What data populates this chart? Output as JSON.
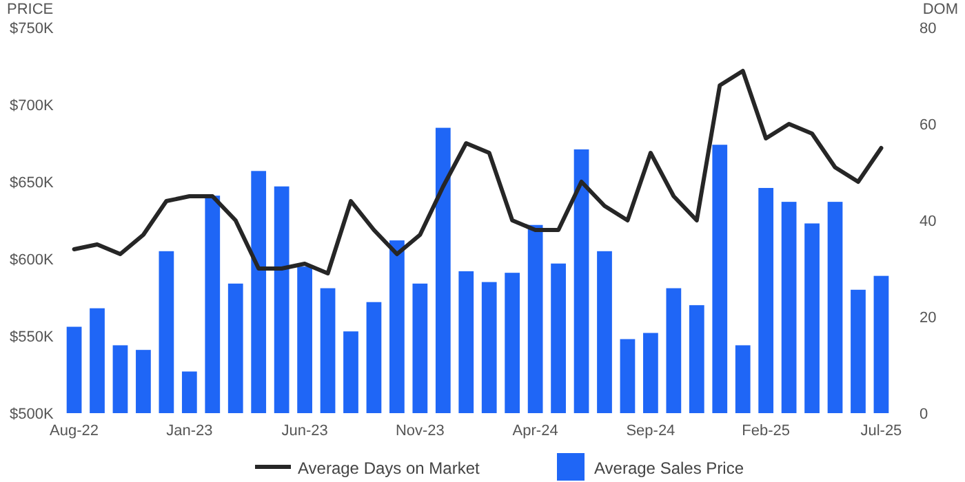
{
  "chart_data": {
    "type": "bar",
    "ylabel": "PRICE",
    "y2label": "DOM",
    "categories": [
      "Aug-22",
      null,
      null,
      null,
      null,
      "Jan-23",
      null,
      null,
      null,
      null,
      "Jun-23",
      null,
      null,
      null,
      null,
      "Nov-23",
      null,
      null,
      null,
      null,
      "Apr-24",
      null,
      null,
      null,
      null,
      "Sep-24",
      null,
      null,
      null,
      null,
      "Feb-25",
      null,
      null,
      null,
      null,
      "Jul-25"
    ],
    "series": [
      {
        "name": "Average Sales Price",
        "color": "#1f66f6",
        "values": [
          556,
          568,
          544,
          541,
          605,
          527,
          641,
          584,
          657,
          647,
          595,
          581,
          553,
          572,
          612,
          584,
          685,
          592,
          585,
          591,
          622,
          597,
          671,
          605,
          548,
          552,
          581,
          570,
          674,
          544,
          646,
          637,
          623,
          637,
          580,
          589
        ]
      },
      {
        "name": "Average Days on Market",
        "type": "line",
        "axis": "y2",
        "color": "#262626",
        "values": [
          34,
          35,
          33,
          37,
          44,
          45,
          45,
          40,
          30,
          30,
          31,
          29,
          44,
          38,
          33,
          37,
          47,
          56,
          54,
          40,
          38,
          38,
          48,
          43,
          40,
          54,
          45,
          40,
          68,
          71,
          57,
          60,
          58,
          51,
          48,
          55
        ]
      }
    ],
    "ylim": [
      500,
      750
    ],
    "yticks": [
      {
        "value": 500,
        "label": "$500K"
      },
      {
        "value": 550,
        "label": "$550K"
      },
      {
        "value": 600,
        "label": "$600K"
      },
      {
        "value": 650,
        "label": "$650K"
      },
      {
        "value": 700,
        "label": "$700K"
      },
      {
        "value": 750,
        "label": "$750K"
      }
    ],
    "y2lim": [
      0,
      80
    ],
    "y2ticks": [
      0,
      20,
      40,
      60,
      80
    ],
    "grid": false,
    "legend": "bottom",
    "marker": "none",
    "line_style": "solid"
  }
}
